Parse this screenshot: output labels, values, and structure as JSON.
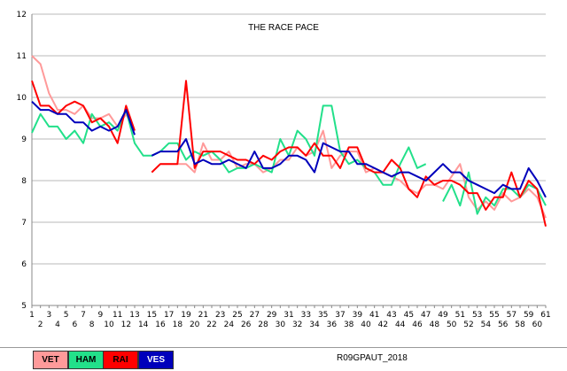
{
  "chart_data": {
    "type": "line",
    "title": "THE RACE PACE",
    "xlabel": "",
    "ylabel": "",
    "xlim": [
      1,
      61
    ],
    "ylim": [
      5,
      12
    ],
    "yticks": [
      5,
      6,
      7,
      8,
      9,
      10,
      11,
      12
    ],
    "grid": true,
    "x": [
      1,
      2,
      3,
      4,
      5,
      6,
      7,
      8,
      9,
      10,
      11,
      12,
      13,
      14,
      15,
      16,
      17,
      18,
      19,
      20,
      21,
      22,
      23,
      24,
      25,
      26,
      27,
      28,
      29,
      30,
      31,
      32,
      33,
      34,
      35,
      36,
      37,
      38,
      39,
      40,
      41,
      42,
      43,
      44,
      45,
      46,
      47,
      48,
      49,
      50,
      51,
      52,
      53,
      54,
      55,
      56,
      57,
      58,
      59,
      60,
      61
    ],
    "series": [
      {
        "name": "VET",
        "color": "#ff9a9a",
        "values": [
          11.0,
          10.8,
          10.1,
          9.7,
          9.7,
          9.6,
          9.8,
          9.5,
          9.5,
          9.6,
          9.3,
          9.6,
          9.2,
          null,
          null,
          8.4,
          8.4,
          8.4,
          8.4,
          8.2,
          8.9,
          8.5,
          8.5,
          8.7,
          8.3,
          8.4,
          8.4,
          8.2,
          8.3,
          8.5,
          8.5,
          8.8,
          8.6,
          8.7,
          9.2,
          8.3,
          8.6,
          8.7,
          8.7,
          8.2,
          8.3,
          8.2,
          8.1,
          8.0,
          7.8,
          7.7,
          7.9,
          7.9,
          7.8,
          8.1,
          8.4,
          7.6,
          7.3,
          7.5,
          7.3,
          7.7,
          7.5,
          7.6,
          7.8,
          7.6,
          7.1
        ]
      },
      {
        "name": "HAM",
        "color": "#22e08a",
        "values": [
          9.15,
          9.6,
          9.3,
          9.3,
          9.0,
          9.2,
          8.9,
          9.6,
          9.3,
          9.4,
          9.2,
          9.7,
          8.9,
          8.6,
          8.6,
          8.7,
          8.9,
          8.9,
          8.5,
          8.7,
          8.6,
          8.7,
          8.5,
          8.2,
          8.3,
          8.3,
          8.4,
          8.3,
          8.2,
          9.0,
          8.6,
          9.2,
          9.0,
          8.6,
          9.8,
          9.8,
          8.7,
          8.4,
          8.5,
          8.3,
          8.2,
          7.9,
          7.9,
          8.4,
          8.8,
          8.3,
          8.4,
          null,
          7.5,
          7.9,
          7.4,
          8.2,
          7.2,
          7.6,
          7.4,
          7.8,
          7.8,
          7.6,
          7.9,
          7.8,
          7.4
        ]
      },
      {
        "name": "RAI",
        "color": "#ff0000",
        "values": [
          10.4,
          9.8,
          9.8,
          9.6,
          9.8,
          9.9,
          9.8,
          9.4,
          9.5,
          9.3,
          8.9,
          9.8,
          9.2,
          null,
          8.2,
          8.4,
          8.4,
          8.4,
          10.4,
          8.3,
          8.7,
          8.7,
          8.7,
          8.6,
          8.5,
          8.5,
          8.4,
          8.6,
          8.5,
          8.7,
          8.8,
          8.8,
          8.6,
          8.9,
          8.6,
          8.6,
          8.3,
          8.8,
          8.8,
          8.3,
          8.2,
          8.2,
          8.5,
          8.3,
          7.8,
          7.6,
          8.1,
          7.9,
          8.0,
          8.0,
          7.9,
          7.7,
          7.7,
          7.3,
          7.6,
          7.6,
          8.2,
          7.6,
          8.0,
          7.8,
          6.9
        ]
      },
      {
        "name": "VES",
        "color": "#0000bb",
        "values": [
          9.9,
          9.7,
          9.7,
          9.6,
          9.6,
          9.4,
          9.4,
          9.2,
          9.3,
          9.2,
          9.3,
          9.7,
          9.1,
          null,
          8.6,
          8.7,
          8.7,
          8.7,
          9.0,
          8.4,
          8.5,
          8.4,
          8.4,
          8.5,
          8.4,
          8.3,
          8.7,
          8.3,
          8.3,
          8.4,
          8.6,
          8.6,
          8.5,
          8.2,
          8.9,
          8.8,
          8.7,
          8.7,
          8.4,
          8.4,
          8.3,
          8.2,
          8.1,
          8.2,
          8.2,
          8.1,
          8.0,
          8.2,
          8.4,
          8.2,
          8.2,
          8.0,
          7.9,
          7.8,
          7.7,
          7.9,
          7.8,
          7.8,
          8.3,
          8.0,
          7.6
        ]
      }
    ]
  },
  "footer": {
    "race_label": "R09GPAUT_2018"
  }
}
